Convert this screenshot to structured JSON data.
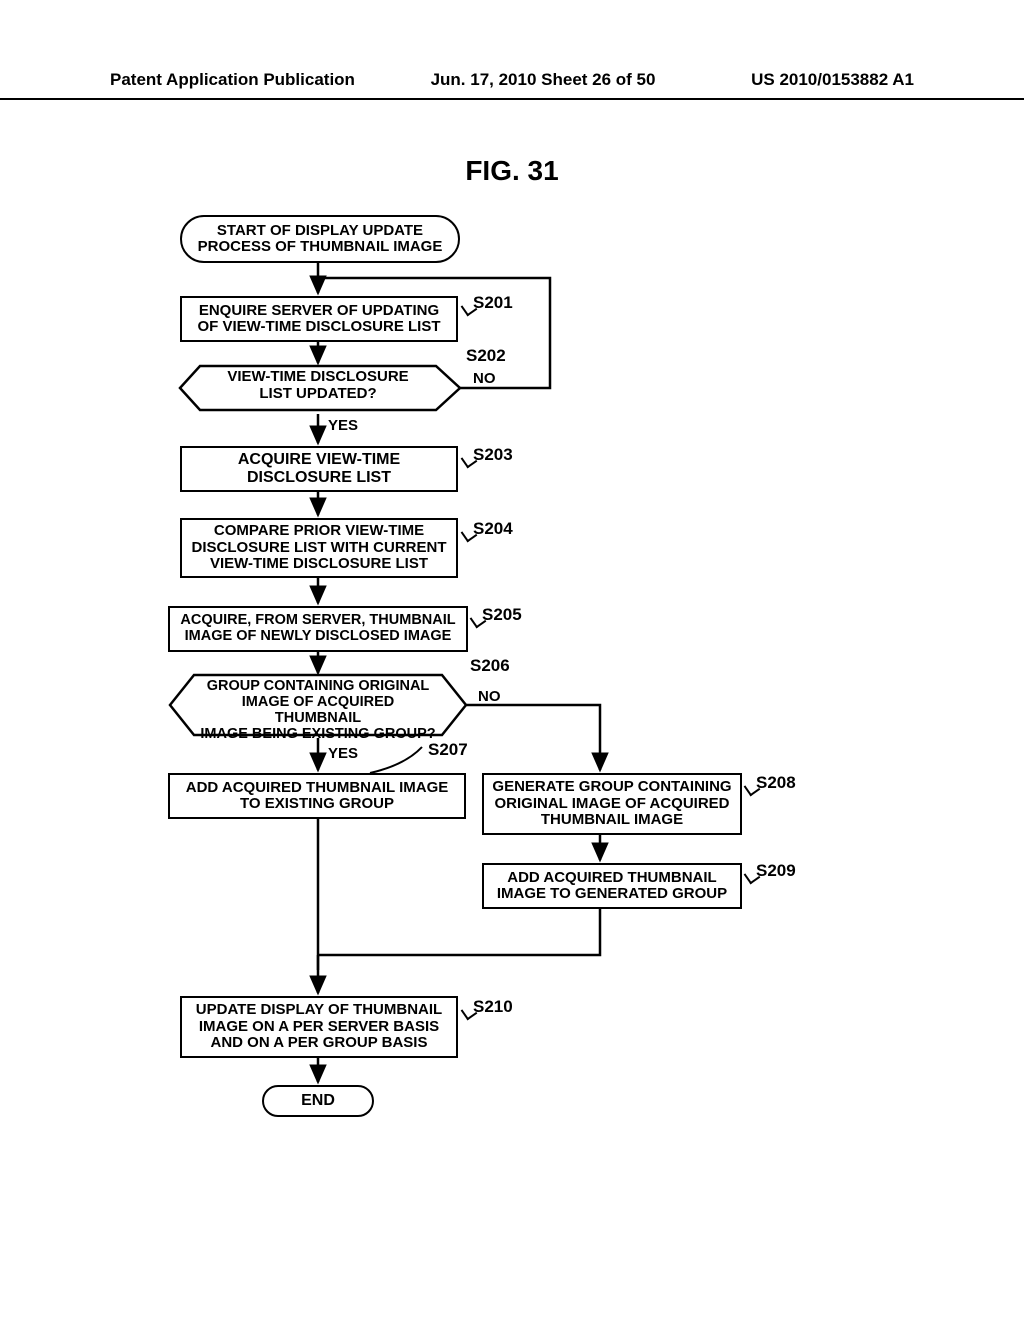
{
  "header": {
    "left": "Patent Application Publication",
    "center": "Jun. 17, 2010  Sheet 26 of 50",
    "right": "US 2010/0153882 A1"
  },
  "figure_title": "FIG. 31",
  "flowchart": {
    "type": "flowchart",
    "font_family": "Arial",
    "stroke_color": "#000000",
    "background_color": "#ffffff",
    "stroke_width": 2.5,
    "text_fontsize": 16,
    "label_fontsize": 17,
    "nodes": {
      "start": {
        "text": "START OF DISPLAY UPDATE\nPROCESS OF THUMBNAIL IMAGE",
        "shape": "terminator"
      },
      "s201": {
        "text": "ENQUIRE SERVER OF UPDATING\nOF VIEW-TIME DISCLOSURE LIST",
        "shape": "process",
        "label": "S201"
      },
      "s202": {
        "text": "VIEW-TIME DISCLOSURE\nLIST UPDATED?",
        "shape": "decision",
        "label": "S202",
        "yes": "YES",
        "no": "NO"
      },
      "s203": {
        "text": "ACQUIRE VIEW-TIME\nDISCLOSURE LIST",
        "shape": "process",
        "label": "S203"
      },
      "s204": {
        "text": "COMPARE PRIOR VIEW-TIME\nDISCLOSURE LIST WITH CURRENT\nVIEW-TIME DISCLOSURE LIST",
        "shape": "process",
        "label": "S204"
      },
      "s205": {
        "text": "ACQUIRE, FROM SERVER, THUMBNAIL\nIMAGE OF NEWLY DISCLOSED IMAGE",
        "shape": "process",
        "label": "S205"
      },
      "s206": {
        "text": "GROUP CONTAINING ORIGINAL\nIMAGE OF ACQUIRED THUMBNAIL\nIMAGE BEING EXISTING GROUP?",
        "shape": "decision",
        "label": "S206",
        "yes": "YES",
        "no": "NO"
      },
      "s207": {
        "text": "ADD ACQUIRED THUMBNAIL IMAGE\nTO EXISTING GROUP",
        "shape": "process",
        "label": "S207"
      },
      "s208": {
        "text": "GENERATE GROUP CONTAINING\nORIGINAL IMAGE OF ACQUIRED\nTHUMBNAIL IMAGE",
        "shape": "process",
        "label": "S208"
      },
      "s209": {
        "text": "ADD ACQUIRED THUMBNAIL\nIMAGE TO GENERATED GROUP",
        "shape": "process",
        "label": "S209"
      },
      "s210": {
        "text": "UPDATE DISPLAY OF THUMBNAIL\nIMAGE ON A PER SERVER BASIS\nAND ON A PER GROUP BASIS",
        "shape": "process",
        "label": "S210"
      },
      "end": {
        "text": "END",
        "shape": "terminator"
      }
    }
  }
}
